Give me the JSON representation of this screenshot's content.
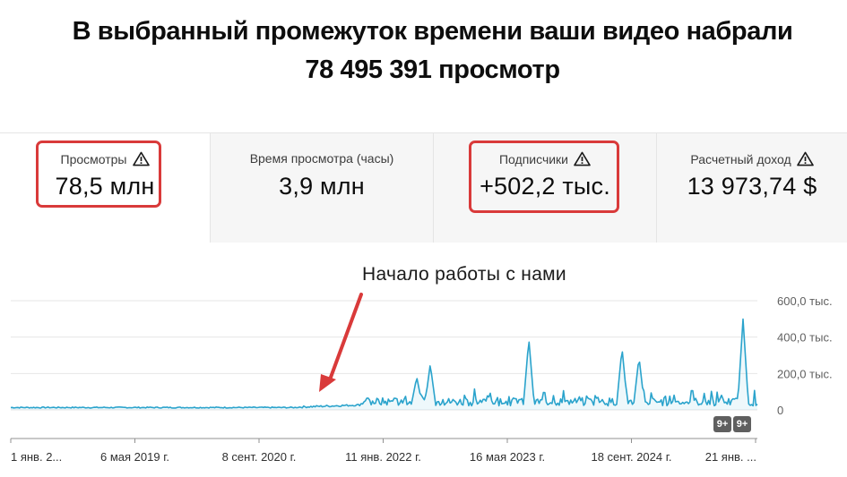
{
  "headline": {
    "line1": "В выбранный промежуток времени ваши видео набрали",
    "line2": "78 495 391 просмотр"
  },
  "cards": [
    {
      "label": "Просмотры",
      "value": "78,5 млн",
      "warning": true,
      "highlighted": true,
      "active": true
    },
    {
      "label": "Время просмотра (часы)",
      "value": "3,9 млн",
      "warning": false,
      "highlighted": false,
      "active": false
    },
    {
      "label": "Подписчики",
      "value": "+502,2 тыс.",
      "warning": true,
      "highlighted": true,
      "active": false
    },
    {
      "label": "Расчетный доход",
      "value": "13 973,74 $",
      "warning": true,
      "highlighted": false,
      "active": false
    }
  ],
  "annotation": "Начало работы с нами",
  "badges": [
    "9+",
    "9+"
  ],
  "colors": {
    "line": "#2aa3cc",
    "highlight": "#d93a3a",
    "arrow": "#d93a3a"
  },
  "chart_data": {
    "type": "line",
    "series": [
      {
        "values_note": "daily views, thousands"
      }
    ],
    "x_ticks": [
      "1 янв. 2...",
      "6 мая 2019 г.",
      "8 сент. 2020 г.",
      "11 янв. 2022 г.",
      "16 мая 2023 г.",
      "18 сент. 2024 г.",
      "21 янв. ..."
    ],
    "y_ticks": [
      "0",
      "200,0 тыс.",
      "400,0 тыс.",
      "600,0 тыс."
    ],
    "ylim": [
      0,
      600
    ],
    "baseline_before_start": 10,
    "baseline_after_start": 50,
    "peaks": [
      {
        "date": "2022-05",
        "value": 150
      },
      {
        "date": "2022-09",
        "value": 220
      },
      {
        "date": "2023-05",
        "value": 360
      },
      {
        "date": "2024-07",
        "value": 310
      },
      {
        "date": "2024-10",
        "value": 260
      },
      {
        "date": "2025-01",
        "value": 470
      }
    ],
    "grid": true
  }
}
